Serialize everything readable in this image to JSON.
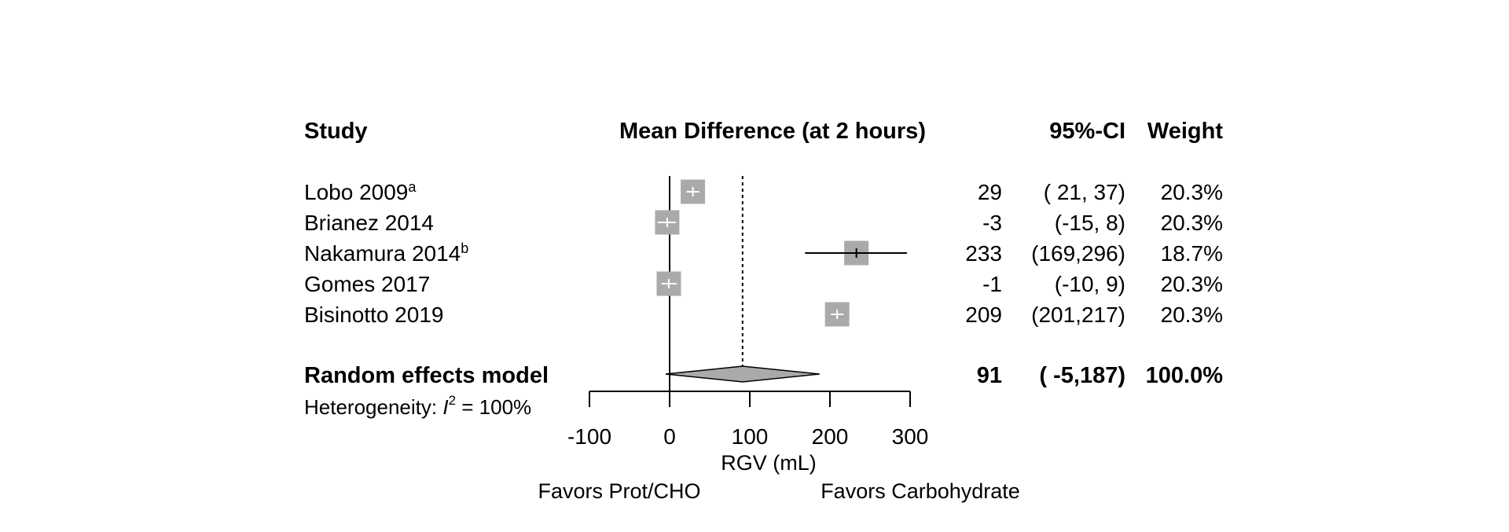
{
  "chart_data": {
    "type": "forest",
    "title": "Mean Difference (at 2 hours)",
    "headers": {
      "study": "Study",
      "ci": "95%-CI",
      "weight": "Weight"
    },
    "studies": [
      {
        "name": "Lobo 2009",
        "sup": "a",
        "md": 29,
        "lower": 21,
        "upper": 37,
        "md_text": "29",
        "ci_text": "( 21, 37)",
        "weight_text": "20.3%"
      },
      {
        "name": "Brianez 2014",
        "sup": "",
        "md": -3,
        "lower": -15,
        "upper": 8,
        "md_text": "-3",
        "ci_text": "(-15,  8)",
        "weight_text": "20.3%"
      },
      {
        "name": "Nakamura 2014",
        "sup": "b",
        "md": 233,
        "lower": 169,
        "upper": 296,
        "md_text": "233",
        "ci_text": "(169,296)",
        "weight_text": "18.7%"
      },
      {
        "name": "Gomes 2017",
        "sup": "",
        "md": -1,
        "lower": -10,
        "upper": 9,
        "md_text": "-1",
        "ci_text": "(-10,  9)",
        "weight_text": "20.3%"
      },
      {
        "name": "Bisinotto 2019",
        "sup": "",
        "md": 209,
        "lower": 201,
        "upper": 217,
        "md_text": "209",
        "ci_text": "(201,217)",
        "weight_text": "20.3%"
      }
    ],
    "pooled": {
      "label": "Random effects model",
      "md": 91,
      "lower": -5,
      "upper": 187,
      "md_text": "91",
      "ci_text": "( -5,187)",
      "weight_text": "100.0%"
    },
    "heterogeneity": {
      "prefix": "Heterogeneity: ",
      "symbol": "I",
      "exponent": "2",
      "suffix": " = 100%"
    },
    "xaxis": {
      "range": [
        -100,
        300
      ],
      "ticks": [
        -100,
        0,
        100,
        200,
        300
      ],
      "tick_labels": [
        "-100",
        "0",
        "100",
        "200",
        "300"
      ],
      "label": "RGV (mL)"
    },
    "favors_left": "Favors Prot/CHO",
    "favors_right": "Favors Carbohydrate",
    "colors": {
      "box": "#aaaaaa",
      "diamond": "#aaaaaa",
      "line": "#000000",
      "inner_line": "#ffffff"
    }
  }
}
